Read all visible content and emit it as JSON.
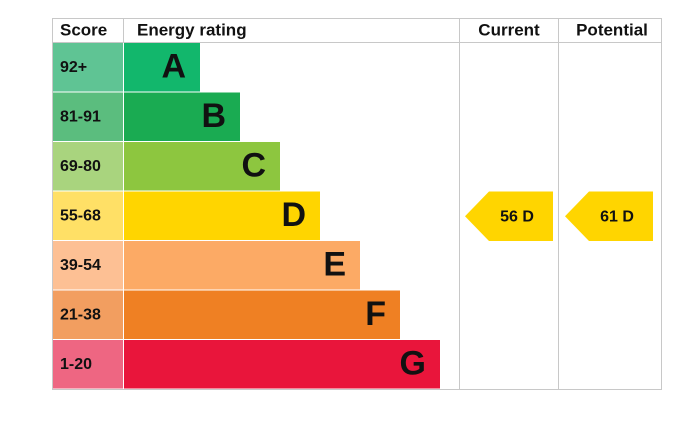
{
  "header": {
    "score": "Score",
    "rating": "Energy rating",
    "current": "Current",
    "potential": "Potential"
  },
  "bands": [
    {
      "score": "92+",
      "letter": "A",
      "color": "#12b76c",
      "score_color": "#5fc494"
    },
    {
      "score": "81-91",
      "letter": "B",
      "color": "#1aab52",
      "score_color": "#5bbd7e"
    },
    {
      "score": "69-80",
      "letter": "C",
      "color": "#8dc63f",
      "score_color": "#a9d47e"
    },
    {
      "score": "55-68",
      "letter": "D",
      "color": "#ffd500",
      "score_color": "#ffe066"
    },
    {
      "score": "39-54",
      "letter": "E",
      "color": "#fcaa65",
      "score_color": "#fdc094"
    },
    {
      "score": "21-38",
      "letter": "F",
      "color": "#ef8023",
      "score_color": "#f29e60"
    },
    {
      "score": "1-20",
      "letter": "G",
      "color": "#e9153b",
      "score_color": "#ee6682"
    }
  ],
  "current": {
    "label": "56 D",
    "color": "#ffd500"
  },
  "potential": {
    "label": "61 D",
    "color": "#ffd500"
  }
}
